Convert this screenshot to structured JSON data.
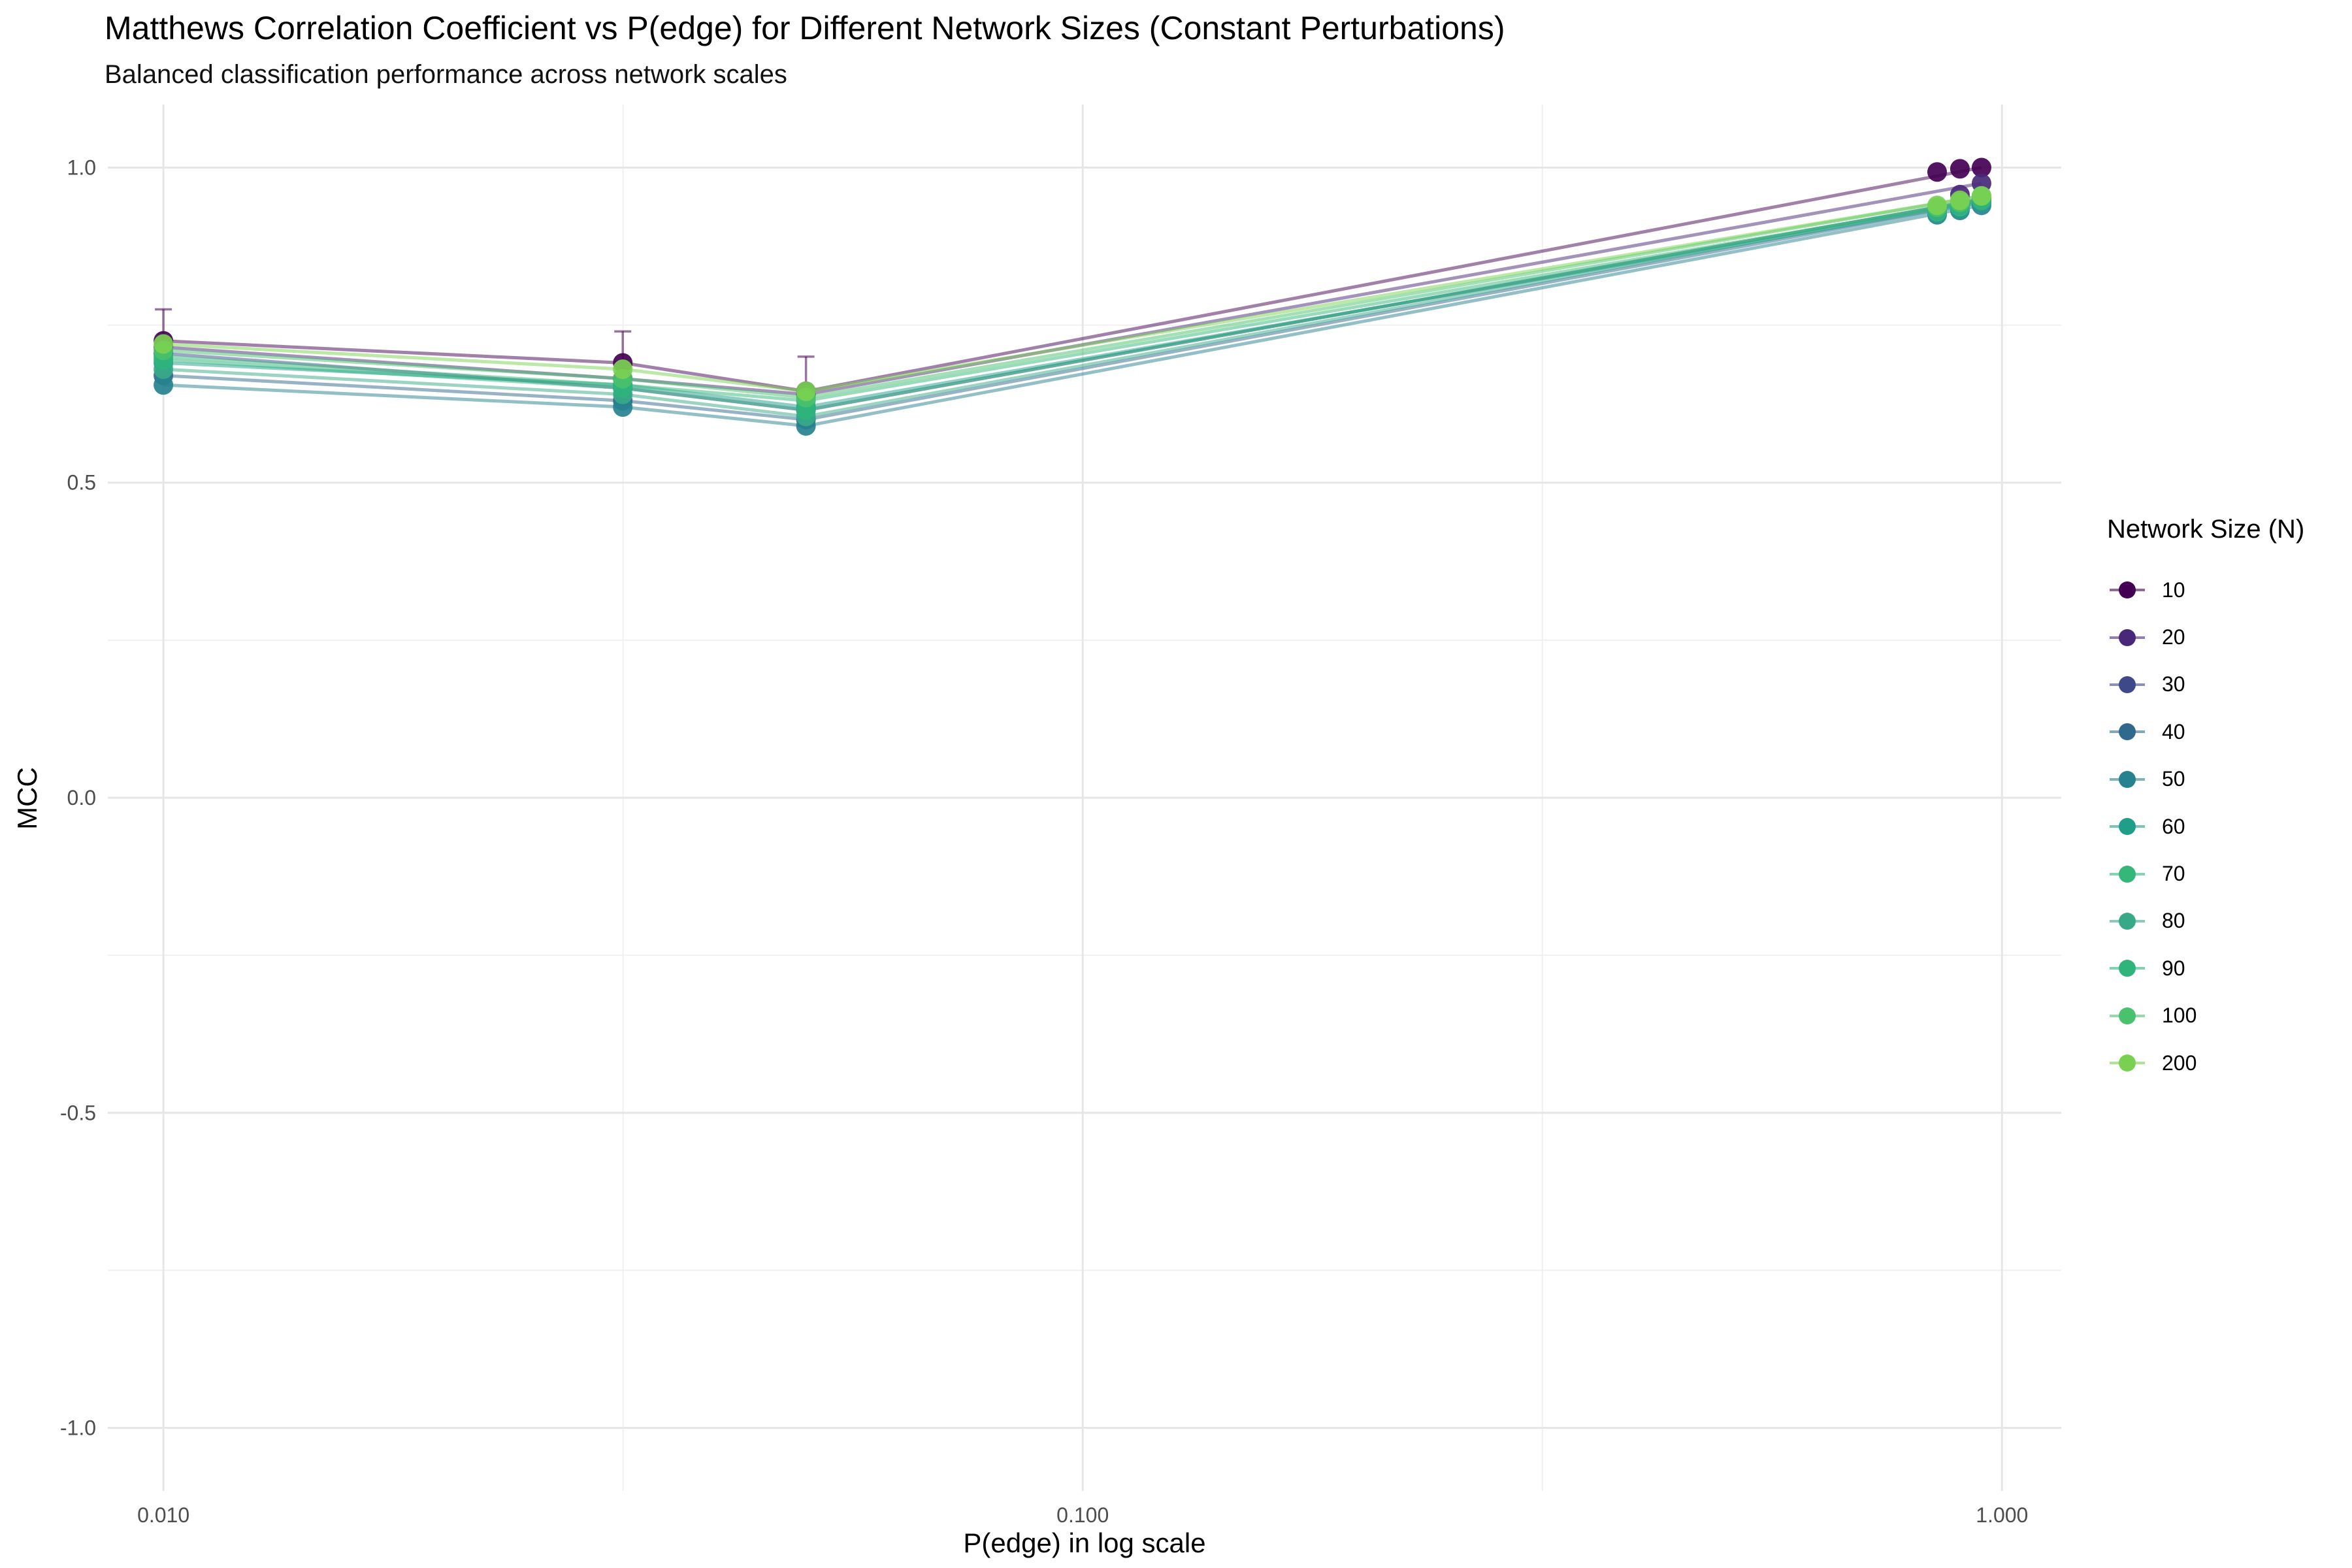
{
  "title": "Matthews Correlation Coefficient vs P(edge) for Different Network Sizes (Constant Perturbations)",
  "subtitle": "Balanced classification performance across network scales",
  "legend_title": "Network Size (N)",
  "chart_data": {
    "type": "line",
    "title": "Matthews Correlation Coefficient vs P(edge) for Different Network Sizes (Constant Perturbations)",
    "subtitle": "Balanced classification performance across network scales",
    "xlabel": "P(edge) in log scale",
    "ylabel": "MCC",
    "x_scale": "log10",
    "xlim": [
      0.0087,
      1.16
    ],
    "ylim": [
      -1.1,
      1.1
    ],
    "x_ticks": [
      0.01,
      0.1,
      1.0
    ],
    "x_tick_labels": [
      "0.010",
      "0.100",
      "1.000"
    ],
    "y_ticks": [
      -1.0,
      -0.5,
      0.0,
      0.5,
      1.0
    ],
    "y_tick_labels": [
      "-1.0",
      "-0.5",
      "0.0",
      "0.5",
      "1.0"
    ],
    "grid": true,
    "legend_position": "right",
    "x": [
      0.01,
      0.0316,
      0.05,
      0.95
    ],
    "series": [
      {
        "name": "10",
        "color": "#440154",
        "values": [
          0.725,
          0.69,
          0.645,
          1.0
        ],
        "points": [
          [
            0.01,
            0.725
          ],
          [
            0.0316,
            0.69
          ],
          [
            0.05,
            0.645
          ],
          [
            0.85,
            0.993
          ],
          [
            0.9,
            0.998
          ],
          [
            0.95,
            1.0
          ]
        ],
        "error": [
          0.05,
          0.05,
          0.055,
          0.0
        ]
      },
      {
        "name": "20",
        "color": "#482878",
        "values": [
          0.715,
          0.665,
          0.64,
          0.975
        ],
        "points": [
          [
            0.01,
            0.715
          ],
          [
            0.0316,
            0.665
          ],
          [
            0.05,
            0.64
          ],
          [
            0.9,
            0.957
          ],
          [
            0.95,
            0.975
          ]
        ]
      },
      {
        "name": "30",
        "color": "#3e4989",
        "values": [
          0.705,
          0.65,
          0.615,
          0.95
        ],
        "points": [
          [
            0.01,
            0.705
          ],
          [
            0.0316,
            0.65
          ],
          [
            0.05,
            0.615
          ],
          [
            0.9,
            0.945
          ],
          [
            0.95,
            0.95
          ]
        ]
      },
      {
        "name": "40",
        "color": "#31688e",
        "values": [
          0.67,
          0.63,
          0.6,
          0.945
        ],
        "points": [
          [
            0.01,
            0.67
          ],
          [
            0.0316,
            0.63
          ],
          [
            0.05,
            0.6
          ],
          [
            0.9,
            0.938
          ],
          [
            0.95,
            0.945
          ]
        ]
      },
      {
        "name": "50",
        "color": "#26828e",
        "values": [
          0.655,
          0.62,
          0.59,
          0.94
        ],
        "points": [
          [
            0.01,
            0.655
          ],
          [
            0.0316,
            0.62
          ],
          [
            0.05,
            0.59
          ],
          [
            0.85,
            0.925
          ],
          [
            0.9,
            0.932
          ],
          [
            0.95,
            0.94
          ]
        ]
      },
      {
        "name": "60",
        "color": "#1f9e89",
        "values": [
          0.69,
          0.655,
          0.62,
          0.945
        ],
        "points": [
          [
            0.01,
            0.69
          ],
          [
            0.0316,
            0.655
          ],
          [
            0.05,
            0.62
          ],
          [
            0.85,
            0.928
          ],
          [
            0.9,
            0.935
          ],
          [
            0.95,
            0.945
          ]
        ]
      },
      {
        "name": "70",
        "color": "#35b779",
        "values": [
          0.7,
          0.655,
          0.63,
          0.948
        ],
        "points": [
          [
            0.01,
            0.7
          ],
          [
            0.0316,
            0.655
          ],
          [
            0.05,
            0.63
          ],
          [
            0.85,
            0.93
          ],
          [
            0.9,
            0.938
          ],
          [
            0.95,
            0.948
          ]
        ]
      },
      {
        "name": "80",
        "color": "#38a988",
        "values": [
          0.68,
          0.64,
          0.605,
          0.948
        ],
        "points": [
          [
            0.01,
            0.68
          ],
          [
            0.0316,
            0.64
          ],
          [
            0.05,
            0.605
          ],
          [
            0.85,
            0.932
          ],
          [
            0.9,
            0.94
          ],
          [
            0.95,
            0.948
          ]
        ]
      },
      {
        "name": "90",
        "color": "#2fb47c",
        "values": [
          0.695,
          0.65,
          0.615,
          0.95
        ],
        "points": [
          [
            0.01,
            0.695
          ],
          [
            0.0316,
            0.65
          ],
          [
            0.05,
            0.615
          ],
          [
            0.85,
            0.935
          ],
          [
            0.9,
            0.942
          ],
          [
            0.95,
            0.95
          ]
        ]
      },
      {
        "name": "100",
        "color": "#4ac16d",
        "values": [
          0.71,
          0.665,
          0.635,
          0.955
        ],
        "points": [
          [
            0.01,
            0.71
          ],
          [
            0.0316,
            0.665
          ],
          [
            0.05,
            0.635
          ],
          [
            0.85,
            0.937
          ],
          [
            0.9,
            0.945
          ],
          [
            0.95,
            0.955
          ]
        ]
      },
      {
        "name": "200",
        "color": "#7ad151",
        "values": [
          0.72,
          0.68,
          0.645,
          0.955
        ],
        "points": [
          [
            0.01,
            0.72
          ],
          [
            0.0316,
            0.68
          ],
          [
            0.05,
            0.645
          ],
          [
            0.85,
            0.94
          ],
          [
            0.9,
            0.948
          ],
          [
            0.95,
            0.955
          ]
        ]
      }
    ]
  }
}
